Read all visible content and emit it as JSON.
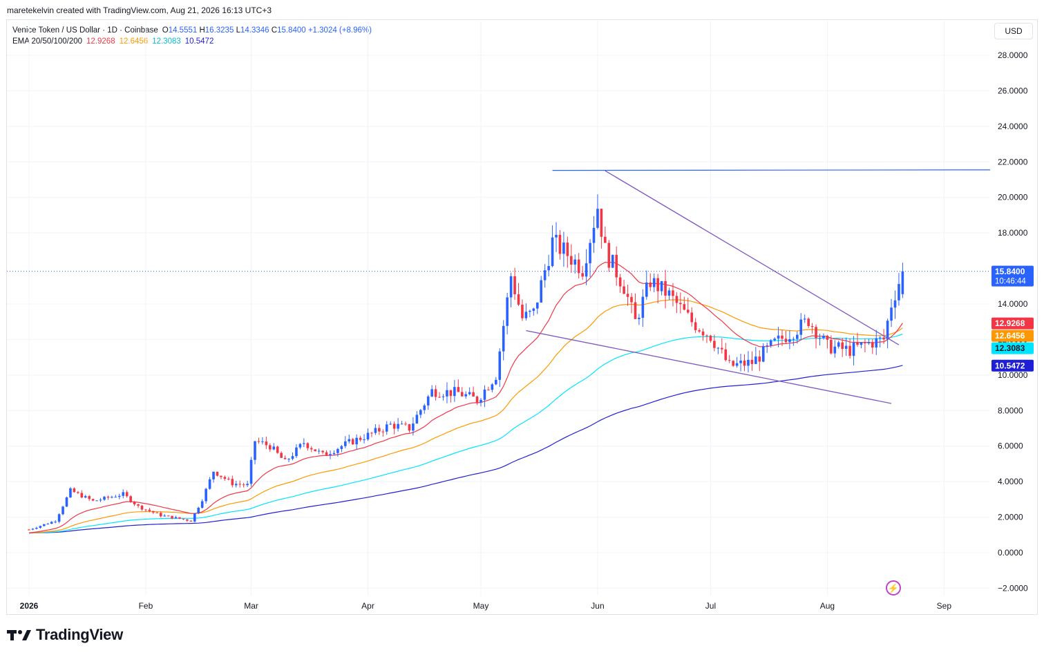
{
  "credit": "maretekelvin created with TradingView.com, Aug 21, 2026 16:13 UTC+3",
  "legend": {
    "symbol": "Venice Token / US Dollar · 1D · Coinbase",
    "o_label": "O",
    "o": "14.5551",
    "h_label": "H",
    "h": "16.3235",
    "l_label": "L",
    "l": "14.3346",
    "c_label": "C",
    "c": "15.8400",
    "change": "+1.3024 (+8.96%)",
    "ema_label": "EMA 20/50/100/200",
    "ema20": "12.9268",
    "ema50": "12.6456",
    "ema100": "12.3083",
    "ema200": "10.5472"
  },
  "currency": "USD",
  "brand": "TradingView",
  "colors": {
    "up": "#2962ff",
    "down": "#f23645",
    "ema20": "#f23645",
    "ema50": "#ff9800",
    "ema100": "#00e5ff",
    "ema200": "#1f1fd6",
    "trendline": "#7e57c2",
    "hline": "#2962ff"
  },
  "chart_data": {
    "type": "candlestick",
    "y_ticks": [
      "28.0000",
      "26.0000",
      "24.0000",
      "22.0000",
      "20.0000",
      "18.0000",
      "14.0000",
      "12.0000",
      "10.0000",
      "8.0000",
      "6.0000",
      "4.0000",
      "2.0000",
      "0.0000",
      "−2.0000"
    ],
    "ylim": [
      -2.5,
      28.5
    ],
    "x_ticks": [
      "2026",
      "Feb",
      "Mar",
      "Apr",
      "May",
      "Jun",
      "Jul",
      "Aug",
      "Sep"
    ],
    "price_labels": [
      {
        "value": 15.84,
        "text": "15.8400",
        "sub": "10:46:44",
        "color": "#2962ff"
      },
      {
        "value": 12.9268,
        "text": "12.9268",
        "color": "#f23645"
      },
      {
        "value": 12.6456,
        "text": "12.6456",
        "color": "#ff9800"
      },
      {
        "value": 12.3083,
        "text": "12.3083",
        "color": "#00e5ff"
      },
      {
        "value": 10.5472,
        "text": "10.5472",
        "color": "#1f1fd6"
      }
    ],
    "anchors": [
      [
        "2026-01-01",
        1.3
      ],
      [
        "2026-01-08",
        1.8
      ],
      [
        "2026-01-12",
        3.5
      ],
      [
        "2026-01-18",
        2.9
      ],
      [
        "2026-01-26",
        3.3
      ],
      [
        "2026-01-30",
        2.6
      ],
      [
        "2026-02-05",
        2.1
      ],
      [
        "2026-02-13",
        1.8
      ],
      [
        "2026-02-16",
        3.0
      ],
      [
        "2026-02-19",
        4.6
      ],
      [
        "2026-02-24",
        3.9
      ],
      [
        "2026-02-28",
        3.8
      ],
      [
        "2026-03-02",
        6.3
      ],
      [
        "2026-03-06",
        6.0
      ],
      [
        "2026-03-10",
        5.1
      ],
      [
        "2026-03-15",
        6.2
      ],
      [
        "2026-03-20",
        5.5
      ],
      [
        "2026-03-27",
        6.2
      ],
      [
        "2026-04-02",
        6.7
      ],
      [
        "2026-04-07",
        7.2
      ],
      [
        "2026-04-12",
        7.0
      ],
      [
        "2026-04-18",
        9.1
      ],
      [
        "2026-04-25",
        9.0
      ],
      [
        "2026-04-30",
        8.6
      ],
      [
        "2026-05-05",
        10.0
      ],
      [
        "2026-05-09",
        15.6
      ],
      [
        "2026-05-12",
        13.2
      ],
      [
        "2026-05-15",
        13.5
      ],
      [
        "2026-05-20",
        17.5
      ],
      [
        "2026-05-24",
        16.8
      ],
      [
        "2026-05-28",
        16.0
      ],
      [
        "2026-06-01",
        19.5
      ],
      [
        "2026-06-03",
        17.0
      ],
      [
        "2026-06-08",
        15.0
      ],
      [
        "2026-06-11",
        13.0
      ],
      [
        "2026-06-15",
        15.3
      ],
      [
        "2026-06-20",
        14.5
      ],
      [
        "2026-06-26",
        13.0
      ],
      [
        "2026-07-01",
        12.2
      ],
      [
        "2026-07-06",
        10.5
      ],
      [
        "2026-07-12",
        10.7
      ],
      [
        "2026-07-18",
        11.8
      ],
      [
        "2026-07-24",
        12.6
      ],
      [
        "2026-07-27",
        13.1
      ],
      [
        "2026-08-01",
        11.6
      ],
      [
        "2026-08-07",
        11.4
      ],
      [
        "2026-08-12",
        11.8
      ],
      [
        "2026-08-16",
        12.0
      ],
      [
        "2026-08-18",
        14.0
      ],
      [
        "2026-08-21",
        15.84
      ]
    ],
    "ema_end": {
      "ema20": 12.9268,
      "ema50": 12.6456,
      "ema100": 12.3083,
      "ema200": 10.5472
    }
  }
}
